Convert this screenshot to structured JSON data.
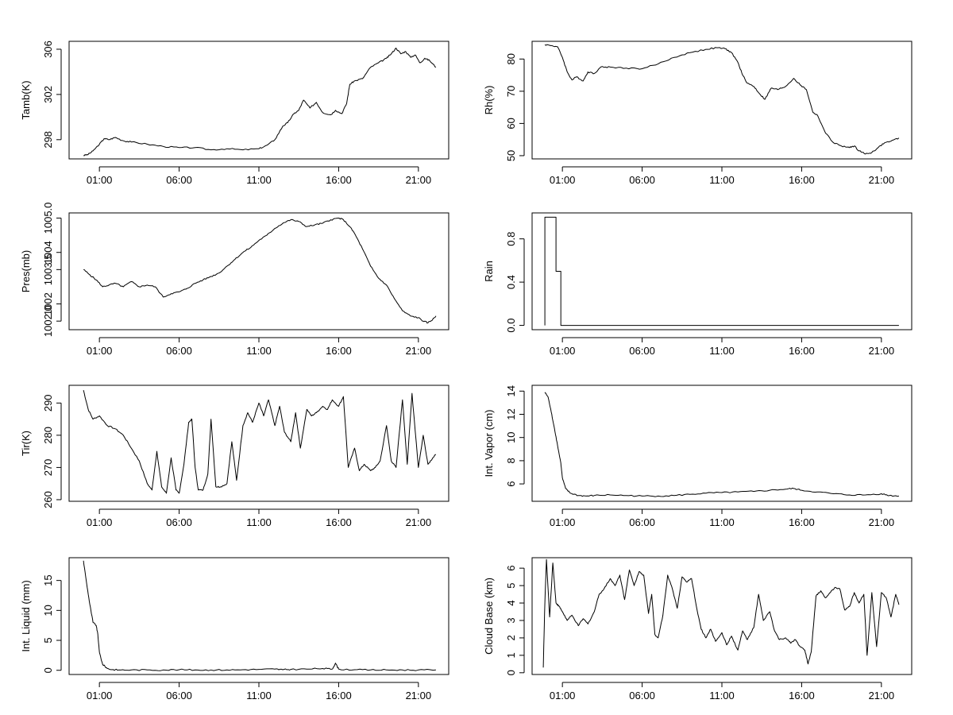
{
  "chart_data": [
    {
      "type": "line",
      "ylabel": "Tamb(K)",
      "x_ticks": [
        1,
        6,
        11,
        16,
        21
      ],
      "x_tick_labels": [
        "01:00",
        "06:00",
        "11:00",
        "16:00",
        "21:00"
      ],
      "xlim": [
        -0.9,
        22.9
      ],
      "y_ticks": [
        298,
        302,
        306
      ],
      "y_tick_labels": [
        "298",
        "302",
        "306"
      ],
      "ylim": [
        296.3,
        306.7
      ],
      "x": [
        0,
        0.3,
        0.6,
        1.0,
        1.3,
        1.6,
        2.0,
        2.5,
        3.0,
        4.0,
        5.0,
        6.0,
        7.0,
        8.0,
        9.0,
        10.0,
        11.0,
        11.5,
        12.0,
        12.5,
        12.8,
        13.2,
        13.5,
        13.8,
        14.2,
        14.6,
        15.0,
        15.5,
        15.8,
        16.2,
        16.5,
        16.7,
        17.0,
        17.5,
        18.0,
        18.5,
        19.0,
        19.3,
        19.6,
        19.9,
        20.2,
        20.5,
        20.8,
        21.1,
        21.4,
        21.7,
        22.1
      ],
      "y": [
        296.6,
        296.7,
        297.0,
        297.6,
        298.1,
        298.0,
        298.2,
        297.9,
        297.8,
        297.6,
        297.4,
        297.3,
        297.3,
        297.1,
        297.2,
        297.1,
        297.2,
        297.5,
        298.0,
        299.2,
        299.5,
        300.3,
        300.6,
        301.5,
        300.8,
        301.3,
        300.4,
        300.2,
        300.6,
        300.3,
        301.2,
        302.9,
        303.2,
        303.4,
        304.4,
        304.8,
        305.2,
        305.6,
        306.1,
        305.6,
        305.8,
        305.3,
        305.5,
        304.8,
        305.2,
        305.0,
        304.4
      ]
    },
    {
      "type": "line",
      "ylabel": "Rh(%)",
      "x_ticks": [
        1,
        6,
        11,
        16,
        21
      ],
      "x_tick_labels": [
        "01:00",
        "06:00",
        "11:00",
        "16:00",
        "21:00"
      ],
      "xlim": [
        -0.9,
        22.9
      ],
      "y_ticks": [
        50,
        60,
        70,
        80
      ],
      "y_tick_labels": [
        "50",
        "60",
        "70",
        "80"
      ],
      "ylim": [
        49,
        85.5
      ],
      "x": [
        -0.1,
        0.3,
        0.7,
        1.0,
        1.3,
        1.6,
        1.9,
        2.3,
        2.6,
        3.0,
        3.4,
        4.0,
        5.0,
        6.0,
        7.0,
        8.0,
        9.0,
        10.0,
        10.7,
        11.2,
        11.6,
        12.0,
        12.3,
        12.6,
        13.0,
        13.4,
        13.7,
        14.1,
        14.5,
        15.0,
        15.5,
        15.9,
        16.3,
        16.7,
        17.0,
        17.5,
        18.0,
        18.5,
        19.0,
        19.3,
        19.6,
        20.0,
        20.4,
        20.8,
        21.2,
        21.6,
        22.1
      ],
      "y": [
        84.5,
        84.2,
        83.8,
        80.5,
        76.0,
        73.5,
        74.5,
        73.2,
        76.0,
        75.5,
        77.5,
        77.5,
        77.2,
        77.0,
        78.5,
        80.5,
        82.0,
        83.0,
        83.5,
        83.2,
        82.0,
        79.0,
        75.0,
        72.5,
        71.5,
        69.0,
        67.5,
        71.0,
        70.5,
        71.5,
        74.0,
        72.0,
        70.5,
        63.5,
        62.5,
        57.0,
        54.0,
        53.0,
        52.5,
        53.0,
        51.5,
        50.5,
        51.0,
        52.5,
        54.0,
        54.5,
        55.5
      ]
    },
    {
      "type": "line",
      "ylabel": "Pres(mb)",
      "x_ticks": [
        1,
        6,
        11,
        16,
        21
      ],
      "x_tick_labels": [
        "01:00",
        "06:00",
        "11:00",
        "16:00",
        "21:00"
      ],
      "xlim": [
        -0.9,
        22.9
      ],
      "y_ticks": [
        1002.0,
        1003.5,
        1005.0
      ],
      "y_tick_labels": [
        "1002.0",
        "1003.5",
        "1005.0"
      ],
      "y_minor_ticks": [
        1002.5,
        1004.0
      ],
      "y_minor_labels": [
        "1002",
        "1004"
      ],
      "ylim": [
        1001.75,
        1005.15
      ],
      "x": [
        0,
        0.4,
        0.8,
        1.2,
        1.6,
        2.0,
        2.5,
        3.0,
        3.5,
        4.0,
        4.5,
        5.0,
        5.5,
        6.0,
        6.5,
        7.0,
        7.5,
        8.0,
        8.5,
        9.0,
        9.5,
        10.0,
        10.5,
        11.0,
        11.5,
        12.0,
        12.5,
        13.0,
        13.5,
        14.0,
        14.5,
        15.0,
        15.5,
        16.0,
        16.3,
        16.7,
        17.0,
        17.5,
        18.0,
        18.5,
        19.0,
        19.5,
        20.0,
        20.5,
        21.0,
        21.3,
        21.6,
        21.9,
        22.1
      ],
      "y": [
        1003.5,
        1003.35,
        1003.2,
        1003.0,
        1003.05,
        1003.1,
        1003.0,
        1003.15,
        1003.0,
        1003.05,
        1003.0,
        1002.7,
        1002.8,
        1002.85,
        1002.95,
        1003.1,
        1003.2,
        1003.3,
        1003.4,
        1003.6,
        1003.8,
        1004.0,
        1004.15,
        1004.35,
        1004.5,
        1004.7,
        1004.85,
        1004.95,
        1004.9,
        1004.75,
        1004.8,
        1004.85,
        1004.95,
        1005.0,
        1004.95,
        1004.75,
        1004.55,
        1004.1,
        1003.6,
        1003.25,
        1003.05,
        1002.65,
        1002.3,
        1002.15,
        1002.1,
        1002.0,
        1001.95,
        1002.05,
        1002.15
      ]
    },
    {
      "type": "line",
      "ylabel": "Rain",
      "x_ticks": [
        1,
        6,
        11,
        16,
        21
      ],
      "x_tick_labels": [
        "01:00",
        "06:00",
        "11:00",
        "16:00",
        "21:00"
      ],
      "xlim": [
        -0.9,
        22.9
      ],
      "y_ticks": [
        0.0,
        0.4,
        0.8
      ],
      "y_tick_labels": [
        "0.0",
        "0.4",
        "0.8"
      ],
      "ylim": [
        -0.04,
        1.04
      ],
      "x": [
        -0.1,
        -0.1,
        0.6,
        0.6,
        0.9,
        0.9,
        22.1
      ],
      "y": [
        0,
        1,
        1,
        0.5,
        0.5,
        0,
        0
      ]
    },
    {
      "type": "line",
      "ylabel": "Tir(K)",
      "x_ticks": [
        1,
        6,
        11,
        16,
        21
      ],
      "x_tick_labels": [
        "01:00",
        "06:00",
        "11:00",
        "16:00",
        "21:00"
      ],
      "xlim": [
        -0.9,
        22.9
      ],
      "y_ticks": [
        260,
        270,
        280,
        290
      ],
      "y_tick_labels": [
        "260",
        "270",
        "280",
        "290"
      ],
      "ylim": [
        259.5,
        295.5
      ],
      "x": [
        0,
        0.3,
        0.6,
        1.0,
        1.5,
        2.0,
        2.5,
        3.0,
        3.5,
        4.0,
        4.3,
        4.6,
        4.9,
        5.2,
        5.5,
        5.8,
        6.0,
        6.3,
        6.6,
        6.8,
        7.0,
        7.2,
        7.5,
        7.8,
        8.0,
        8.3,
        8.6,
        9.0,
        9.3,
        9.6,
        10.0,
        10.3,
        10.6,
        11.0,
        11.3,
        11.6,
        12.0,
        12.3,
        12.6,
        13.0,
        13.3,
        13.6,
        14.0,
        14.3,
        14.6,
        15.0,
        15.3,
        15.6,
        16.0,
        16.3,
        16.6,
        17.0,
        17.3,
        17.6,
        18.0,
        18.3,
        18.6,
        19.0,
        19.3,
        19.6,
        20.0,
        20.3,
        20.6,
        21.0,
        21.3,
        21.6,
        21.9,
        22.1
      ],
      "y": [
        294,
        288,
        285,
        286,
        283,
        282,
        280,
        276,
        272,
        265,
        263,
        275,
        264,
        262,
        273,
        263,
        262,
        271,
        284,
        285,
        270,
        263,
        263,
        268,
        285,
        264,
        264,
        265,
        278,
        266,
        283,
        287,
        284,
        290,
        286,
        291,
        283,
        289,
        281,
        278,
        287,
        276,
        288,
        286,
        287,
        289,
        288,
        291,
        289,
        292,
        270,
        276,
        269,
        271,
        269,
        270,
        272,
        283,
        272,
        270,
        291,
        271,
        293,
        270,
        280,
        271,
        273,
        274
      ]
    },
    {
      "type": "line",
      "ylabel": "Int. Vapor (cm)",
      "x_ticks": [
        1,
        6,
        11,
        16,
        21
      ],
      "x_tick_labels": [
        "01:00",
        "06:00",
        "11:00",
        "16:00",
        "21:00"
      ],
      "xlim": [
        -0.9,
        22.9
      ],
      "y_ticks": [
        6,
        8,
        10,
        12,
        14
      ],
      "y_tick_labels": [
        "6",
        "8",
        "10",
        "12",
        "14"
      ],
      "ylim": [
        4.5,
        14.5
      ],
      "x": [
        -0.1,
        0.1,
        0.3,
        0.5,
        0.7,
        0.9,
        1.0,
        1.2,
        1.5,
        2.0,
        2.5,
        3.0,
        4.0,
        5.0,
        6.0,
        7.0,
        8.0,
        9.0,
        10.0,
        11.0,
        12.0,
        13.0,
        14.0,
        15.0,
        15.5,
        16.0,
        17.0,
        18.0,
        19.0,
        20.0,
        21.0,
        21.5,
        22.1
      ],
      "y": [
        13.9,
        13.5,
        12.2,
        10.8,
        9.3,
        7.8,
        6.5,
        5.6,
        5.2,
        5.0,
        4.95,
        5.0,
        5.05,
        5.0,
        4.95,
        4.95,
        5.0,
        5.1,
        5.2,
        5.25,
        5.3,
        5.35,
        5.45,
        5.55,
        5.6,
        5.45,
        5.3,
        5.15,
        5.05,
        5.05,
        5.15,
        5.0,
        4.95
      ]
    },
    {
      "type": "line",
      "ylabel": "Int. Liquid (mm)",
      "x_ticks": [
        1,
        6,
        11,
        16,
        21
      ],
      "x_tick_labels": [
        "01:00",
        "06:00",
        "11:00",
        "16:00",
        "21:00"
      ],
      "xlim": [
        -0.9,
        22.9
      ],
      "y_ticks": [
        0,
        5,
        10,
        15
      ],
      "y_tick_labels": [
        "0",
        "5",
        "10",
        "15"
      ],
      "ylim": [
        -0.7,
        18.8
      ],
      "x": [
        0,
        0.2,
        0.4,
        0.6,
        0.8,
        0.9,
        1.0,
        1.2,
        1.5,
        1.8,
        2.2,
        3.0,
        4.0,
        5.0,
        6.0,
        7.0,
        8.0,
        9.0,
        10.0,
        11.0,
        12.0,
        12.5,
        13.0,
        14.0,
        15.0,
        15.6,
        15.8,
        16.0,
        17.0,
        18.0,
        19.0,
        20.0,
        21.0,
        22.1
      ],
      "y": [
        18.3,
        14.5,
        11.0,
        8.0,
        7.5,
        6.0,
        3.0,
        1.0,
        0.3,
        0.1,
        0.05,
        0.05,
        0.05,
        0.05,
        0.1,
        0.05,
        0.05,
        0.05,
        0.1,
        0.15,
        0.2,
        0.1,
        0.15,
        0.2,
        0.3,
        0.2,
        1.2,
        0.2,
        0.1,
        0.05,
        0.05,
        0.05,
        0.05,
        0.05
      ]
    },
    {
      "type": "line",
      "ylabel": "Cloud Base (km)",
      "x_ticks": [
        1,
        6,
        11,
        16,
        21
      ],
      "x_tick_labels": [
        "01:00",
        "06:00",
        "11:00",
        "16:00",
        "21:00"
      ],
      "xlim": [
        -0.9,
        22.9
      ],
      "y_ticks": [
        0,
        1,
        2,
        3,
        4,
        5,
        6
      ],
      "y_tick_labels": [
        "0",
        "1",
        "2",
        "3",
        "4",
        "5",
        "6"
      ],
      "ylim": [
        -0.1,
        6.6
      ],
      "x": [
        -0.2,
        -0.1,
        0.0,
        0.2,
        0.4,
        0.6,
        0.8,
        1.0,
        1.3,
        1.6,
        2.0,
        2.3,
        2.6,
        3.0,
        3.3,
        3.6,
        4.0,
        4.3,
        4.6,
        4.9,
        5.2,
        5.5,
        5.8,
        6.1,
        6.4,
        6.6,
        6.8,
        7.0,
        7.3,
        7.6,
        7.9,
        8.2,
        8.5,
        8.8,
        9.1,
        9.4,
        9.7,
        10.0,
        10.3,
        10.6,
        11.0,
        11.3,
        11.6,
        12.0,
        12.3,
        12.6,
        13.0,
        13.3,
        13.6,
        14.0,
        14.3,
        14.6,
        15.0,
        15.3,
        15.6,
        15.9,
        16.2,
        16.4,
        16.6,
        16.9,
        17.2,
        17.5,
        17.8,
        18.1,
        18.4,
        18.7,
        19.0,
        19.3,
        19.6,
        19.9,
        20.1,
        20.4,
        20.7,
        21.0,
        21.3,
        21.6,
        21.9,
        22.1
      ],
      "y": [
        0.3,
        4.0,
        6.5,
        3.2,
        6.3,
        4.0,
        3.8,
        3.5,
        3.0,
        3.3,
        2.7,
        3.1,
        2.8,
        3.5,
        4.5,
        4.8,
        5.4,
        5.0,
        5.6,
        4.2,
        5.9,
        5.0,
        5.8,
        5.6,
        3.4,
        4.5,
        2.2,
        2.0,
        3.3,
        5.6,
        4.8,
        3.7,
        5.5,
        5.2,
        5.4,
        3.8,
        2.5,
        2.0,
        2.5,
        1.8,
        2.3,
        1.6,
        2.1,
        1.3,
        2.4,
        1.9,
        2.6,
        4.5,
        3.0,
        3.5,
        2.4,
        1.9,
        2.0,
        1.7,
        1.9,
        1.5,
        1.3,
        0.5,
        1.2,
        4.4,
        4.7,
        4.3,
        4.6,
        4.9,
        4.8,
        3.6,
        3.8,
        4.6,
        4.0,
        4.5,
        1.0,
        4.6,
        1.5,
        4.6,
        4.3,
        3.2,
        4.5,
        3.9
      ]
    }
  ]
}
